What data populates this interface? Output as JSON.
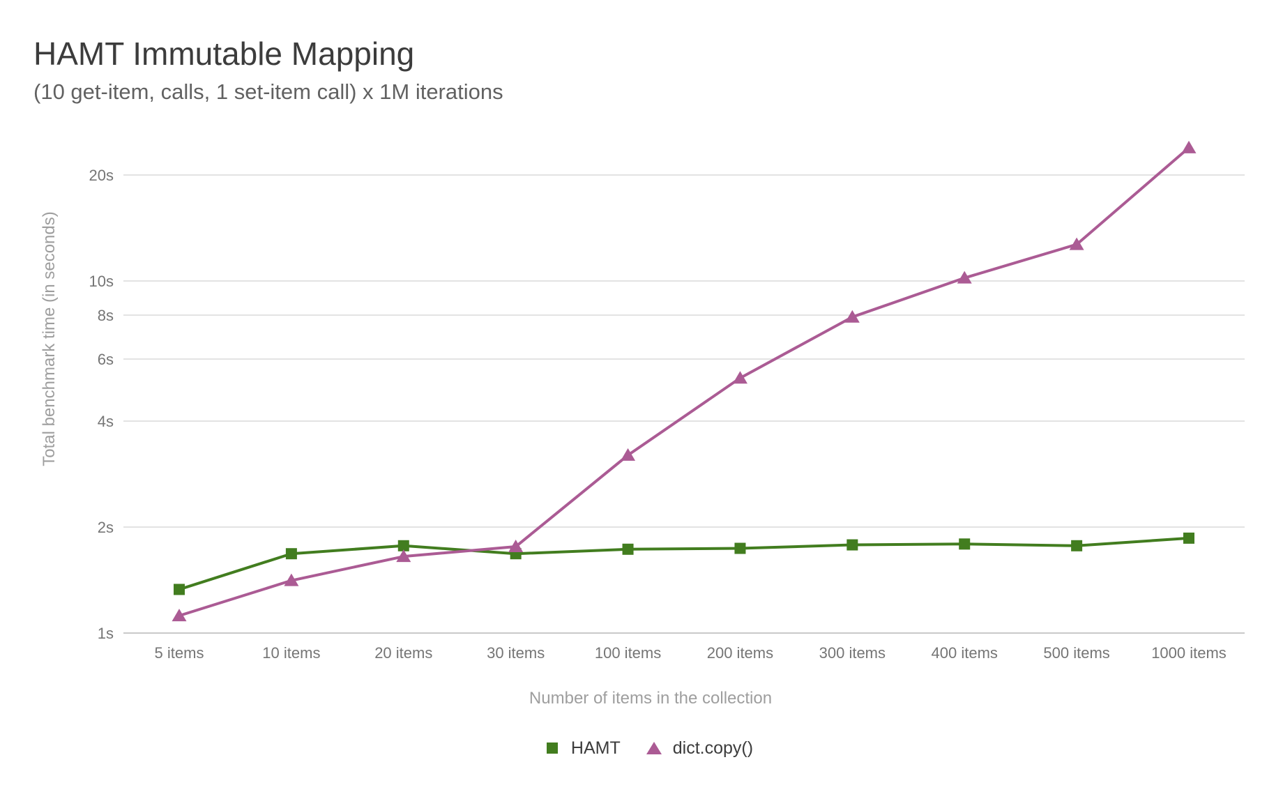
{
  "header": {
    "title": "HAMT Immutable Mapping",
    "subtitle": "(10 get-item, calls, 1 set-item call) x 1M iterations"
  },
  "chart_data": {
    "type": "line",
    "title": "HAMT Immutable Mapping",
    "subtitle": "(10 get-item, calls, 1 set-item call) x 1M iterations",
    "xlabel": "Number of items in the collection",
    "ylabel": "Total benchmark time (in seconds)",
    "y_scale": "log",
    "ylim": [
      1,
      25
    ],
    "grid": true,
    "legend_position": "bottom",
    "y_ticks": [
      {
        "value": 1,
        "label": "1s"
      },
      {
        "value": 2,
        "label": "2s"
      },
      {
        "value": 4,
        "label": "4s"
      },
      {
        "value": 6,
        "label": "6s"
      },
      {
        "value": 8,
        "label": "8s"
      },
      {
        "value": 10,
        "label": "10s"
      },
      {
        "value": 20,
        "label": "20s"
      }
    ],
    "categories": [
      "5 items",
      "10 items",
      "20 items",
      "30 items",
      "100 items",
      "200 items",
      "300 items",
      "400 items",
      "500 items",
      "1000 items"
    ],
    "series": [
      {
        "name": "HAMT",
        "marker": "square",
        "color": "#427d1f",
        "values": [
          1.33,
          1.68,
          1.77,
          1.68,
          1.73,
          1.74,
          1.78,
          1.79,
          1.77,
          1.86
        ]
      },
      {
        "name": "dict.copy()",
        "marker": "triangle",
        "color": "#ab5b94",
        "values": [
          1.12,
          1.41,
          1.65,
          1.76,
          3.2,
          5.3,
          7.9,
          10.2,
          12.7,
          23.9
        ]
      }
    ],
    "colors": {
      "gridline": "#e3e3e3",
      "baseline": "#c9c9c9",
      "tick_label": "#757575",
      "axis_title": "#9e9e9e",
      "title": "#3c3c3c",
      "subtitle": "#616161",
      "legend_label": "#3c3c3c"
    }
  }
}
